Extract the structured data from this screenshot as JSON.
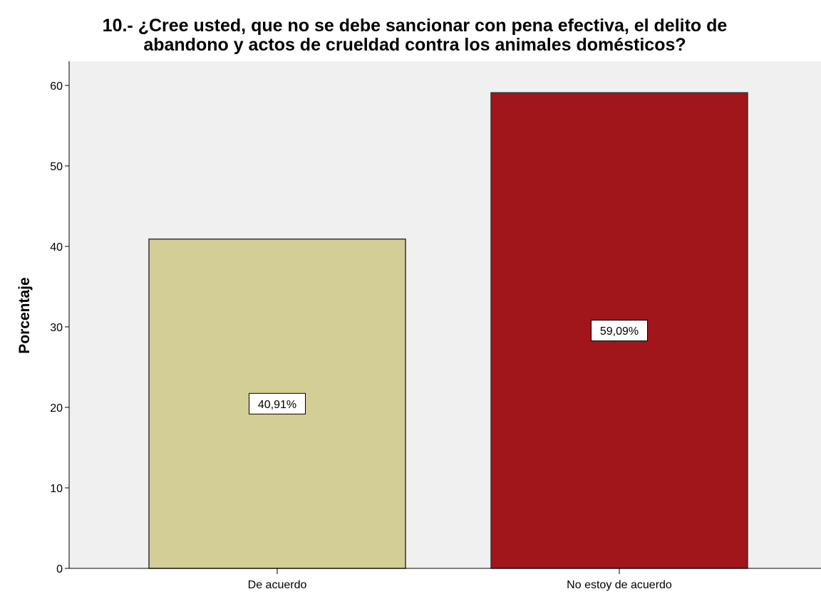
{
  "chart_data": {
    "type": "bar",
    "title_lines": [
      "10.- ¿Cree usted, que no se debe sancionar con pena efectiva, el delito de",
      "abandono y actos de crueldad contra los animales domésticos?"
    ],
    "xlabel": "",
    "ylabel": "Porcentaje",
    "categories": [
      "De acuerdo",
      "No estoy de acuerdo"
    ],
    "values": [
      40.91,
      59.09
    ],
    "data_labels": [
      "40,91%",
      "59,09%"
    ],
    "bar_colors": [
      "#D3CD96",
      "#A0161A"
    ],
    "ylim": [
      0,
      63
    ],
    "yticks": [
      0,
      10,
      20,
      30,
      40,
      50,
      60
    ],
    "ytick_labels": [
      "0",
      "10",
      "20",
      "30",
      "40",
      "50",
      "60"
    ],
    "grid": false,
    "plot_background": "#F0F0F0"
  }
}
